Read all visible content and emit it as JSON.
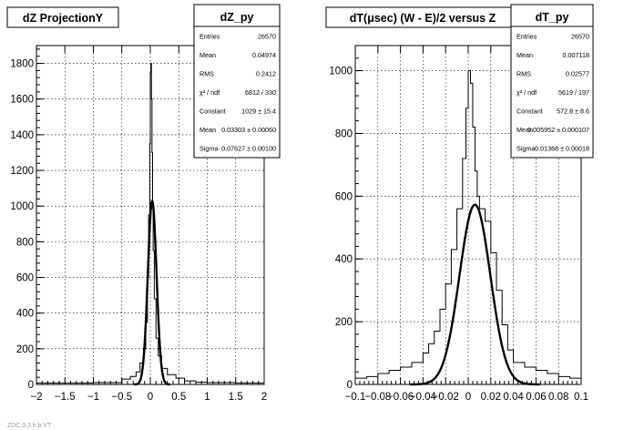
{
  "panels": [
    {
      "title": "dZ ProjectionY",
      "stats": {
        "name": "dZ_py",
        "rows": [
          {
            "label": "Entries",
            "value": "26570"
          },
          {
            "label": "Mean",
            "value": "0.04974"
          },
          {
            "label": "RMS",
            "value": "0.2412"
          },
          {
            "label": "χ² / ndf",
            "value": "6812 / 330"
          },
          {
            "label": "Constant",
            "value": "1029 ± 15.4"
          },
          {
            "label": "Mean",
            "value": "0.03303 ± 0.00060"
          },
          {
            "label": "Sigma",
            "value": "0.07627 ± 0.00100"
          }
        ]
      }
    },
    {
      "title": "dT(μsec) (W - E)/2 versus Z",
      "stats": {
        "name": "dT_py",
        "rows": [
          {
            "label": "Entries",
            "value": "26570"
          },
          {
            "label": "Mean",
            "value": "0.007118"
          },
          {
            "label": "RMS",
            "value": "0.02577"
          },
          {
            "label": "χ² / ndf",
            "value": "5619 / 197"
          },
          {
            "label": "Constant",
            "value": "572.8 ± 8.6"
          },
          {
            "label": "Mean",
            "value": "0.005952 ± 0.000107"
          },
          {
            "label": "Sigma",
            "value": "0.01368 ± 0.00018"
          }
        ]
      }
    }
  ],
  "chart_data": [
    {
      "type": "line",
      "title": "dZ ProjectionY",
      "xlim": [
        -2,
        2
      ],
      "ylim": [
        0,
        1900
      ],
      "xticks": [
        -2,
        -1.5,
        -1,
        -0.5,
        0,
        0.5,
        1,
        1.5,
        2
      ],
      "xtick_labels": [
        "−2",
        "−1.5",
        "−1",
        "−0.5",
        "0",
        "0.5",
        "1",
        "1.5",
        "2"
      ],
      "yticks": [
        0,
        200,
        400,
        600,
        800,
        1000,
        1200,
        1400,
        1600,
        1800
      ],
      "grid": true,
      "series": [
        {
          "style": "histogram",
          "x": [
            -2.0,
            -1.5,
            -1.0,
            -0.5,
            -0.35,
            -0.25,
            -0.18,
            -0.12,
            -0.08,
            -0.05,
            -0.03,
            -0.01,
            0.0,
            0.01,
            0.02,
            0.03,
            0.04,
            0.05,
            0.07,
            0.1,
            0.14,
            0.2,
            0.3,
            0.45,
            0.6,
            0.8,
            1.0,
            1.5,
            2.0
          ],
          "y": [
            8,
            8,
            10,
            30,
            45,
            70,
            120,
            200,
            350,
            600,
            950,
            1350,
            1750,
            1800,
            1600,
            1300,
            1000,
            750,
            480,
            260,
            160,
            90,
            55,
            35,
            20,
            12,
            10,
            8,
            8
          ]
        },
        {
          "style": "gaussian-fit",
          "constant": 1029,
          "mean": 0.03303,
          "sigma": 0.07627
        }
      ]
    },
    {
      "type": "line",
      "title": "dT(μsec) (W - E)/2 versus Z",
      "xlim": [
        -0.1,
        0.1
      ],
      "ylim": [
        0,
        1080
      ],
      "xticks": [
        -0.1,
        -0.08,
        -0.06,
        -0.04,
        -0.02,
        0,
        0.02,
        0.04,
        0.06,
        0.08,
        0.1
      ],
      "xtick_labels": [
        "−0.1",
        "−0.08",
        "−0.06",
        "−0.04",
        "−0.02",
        "0",
        "0.02",
        "0.04",
        "0.06",
        "0.08",
        "0.1"
      ],
      "yticks": [
        0,
        200,
        400,
        600,
        800,
        1000
      ],
      "grid": true,
      "series": [
        {
          "style": "histogram",
          "x": [
            -0.1,
            -0.09,
            -0.08,
            -0.07,
            -0.06,
            -0.05,
            -0.04,
            -0.035,
            -0.03,
            -0.025,
            -0.02,
            -0.015,
            -0.01,
            -0.005,
            -0.002,
            0.0,
            0.002,
            0.004,
            0.006,
            0.008,
            0.01,
            0.015,
            0.02,
            0.025,
            0.03,
            0.035,
            0.04,
            0.05,
            0.06,
            0.07,
            0.08,
            0.09,
            0.1
          ],
          "y": [
            20,
            25,
            35,
            45,
            55,
            70,
            100,
            130,
            170,
            240,
            320,
            430,
            560,
            720,
            880,
            1000,
            960,
            820,
            680,
            600,
            560,
            520,
            420,
            300,
            190,
            110,
            70,
            55,
            45,
            35,
            25,
            20,
            15
          ]
        },
        {
          "style": "gaussian-fit",
          "constant": 572.8,
          "mean": 0.005952,
          "sigma": 0.01368
        }
      ]
    }
  ],
  "footer": {
    "text": "ZDC.0.J.h.b.VT"
  }
}
